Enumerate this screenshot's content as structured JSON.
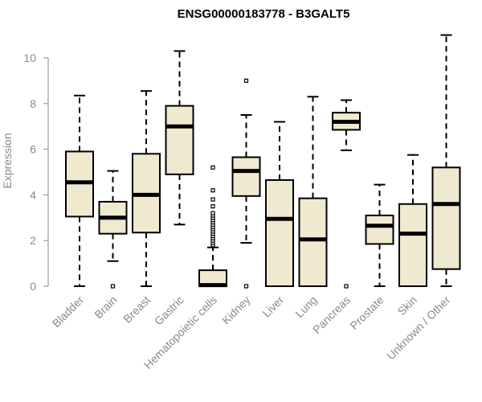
{
  "chart_data": {
    "type": "box",
    "title": "ENSG00000183778 - B3GALT5",
    "xlabel": "",
    "ylabel": "Expression",
    "ylim": [
      0,
      11
    ],
    "yticks": [
      0,
      2,
      4,
      6,
      8,
      10
    ],
    "box_fill": "#efe9d0",
    "categories": [
      "Bladder",
      "Brain",
      "Breast",
      "Gastric",
      "Hematopoietic cells",
      "Kidney",
      "Liver",
      "Lung",
      "Pancreas",
      "Prostate",
      "Skin",
      "Unknown / Other"
    ],
    "boxes": [
      {
        "min": 0,
        "q1": 3.05,
        "median": 4.55,
        "q3": 5.9,
        "max": 8.35,
        "outliers": []
      },
      {
        "min": 1.1,
        "q1": 2.3,
        "median": 3.0,
        "q3": 3.7,
        "max": 5.05,
        "outliers": [
          0
        ]
      },
      {
        "min": 0,
        "q1": 2.35,
        "median": 4.0,
        "q3": 5.8,
        "max": 8.55,
        "outliers": []
      },
      {
        "min": 2.7,
        "q1": 4.9,
        "median": 7.0,
        "q3": 7.9,
        "max": 10.3,
        "outliers": []
      },
      {
        "min": 0,
        "q1": 0,
        "median": 0.05,
        "q3": 0.7,
        "max": 1.7,
        "outliers": [
          1.8,
          1.9,
          2.0,
          2.1,
          2.2,
          2.3,
          2.4,
          2.5,
          2.6,
          2.7,
          2.8,
          2.9,
          3.0,
          3.1,
          3.2,
          3.5,
          3.8,
          4.2,
          5.2
        ]
      },
      {
        "min": 1.9,
        "q1": 3.95,
        "median": 5.05,
        "q3": 5.65,
        "max": 7.5,
        "outliers": [
          0,
          9.0
        ]
      },
      {
        "min": 0,
        "q1": 0,
        "median": 2.95,
        "q3": 4.65,
        "max": 7.2,
        "outliers": []
      },
      {
        "min": 0,
        "q1": 0,
        "median": 2.05,
        "q3": 3.85,
        "max": 8.3,
        "outliers": []
      },
      {
        "min": 5.95,
        "q1": 6.85,
        "median": 7.2,
        "q3": 7.6,
        "max": 8.15,
        "outliers": [
          0
        ]
      },
      {
        "min": 0,
        "q1": 1.85,
        "median": 2.65,
        "q3": 3.1,
        "max": 4.45,
        "outliers": []
      },
      {
        "min": 0,
        "q1": 0,
        "median": 2.3,
        "q3": 3.6,
        "max": 5.75,
        "outliers": []
      },
      {
        "min": 0,
        "q1": 0.75,
        "median": 3.6,
        "q3": 5.2,
        "max": 11.0,
        "outliers": []
      }
    ]
  }
}
